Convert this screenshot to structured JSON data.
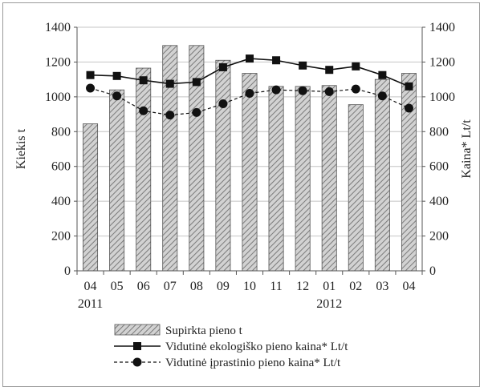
{
  "chart_data": {
    "type": "bar",
    "categories": [
      "04",
      "05",
      "06",
      "07",
      "08",
      "09",
      "10",
      "11",
      "12",
      "01",
      "02",
      "03",
      "04"
    ],
    "year_labels": [
      {
        "index": 0,
        "label": "2011"
      },
      {
        "index": 9,
        "label": "2012"
      }
    ],
    "series": [
      {
        "name": "Supirkta pieno t",
        "kind": "bar",
        "axis": "left",
        "color": "#b5b5b5",
        "values": [
          845,
          1040,
          1165,
          1295,
          1295,
          1210,
          1135,
          1060,
          1060,
          1065,
          955,
          1100,
          1135
        ]
      },
      {
        "name": "Vidutinė ekologiško pieno kaina* Lt/t",
        "kind": "line",
        "axis": "right",
        "marker": "square",
        "line_style": "solid",
        "color": "#111111",
        "values": [
          1125,
          1120,
          1095,
          1075,
          1085,
          1170,
          1220,
          1210,
          1180,
          1155,
          1175,
          1125,
          1060
        ]
      },
      {
        "name": "Vidutinė įprastinio pieno kaina* Lt/t",
        "kind": "line",
        "axis": "right",
        "marker": "circle",
        "line_style": "dashed",
        "color": "#111111",
        "values": [
          1050,
          1005,
          920,
          895,
          910,
          960,
          1020,
          1040,
          1035,
          1030,
          1045,
          1005,
          935
        ]
      }
    ],
    "ylabel_left": "Kiekis t",
    "ylabel_right": "Kaina* Lt/t",
    "ylim_left": [
      0,
      1400
    ],
    "ylim_right": [
      0,
      1400
    ],
    "yticks": [
      "0",
      "200",
      "400",
      "600",
      "800",
      "1000",
      "1200",
      "1400"
    ],
    "grid": true,
    "legend_position": "bottom"
  }
}
